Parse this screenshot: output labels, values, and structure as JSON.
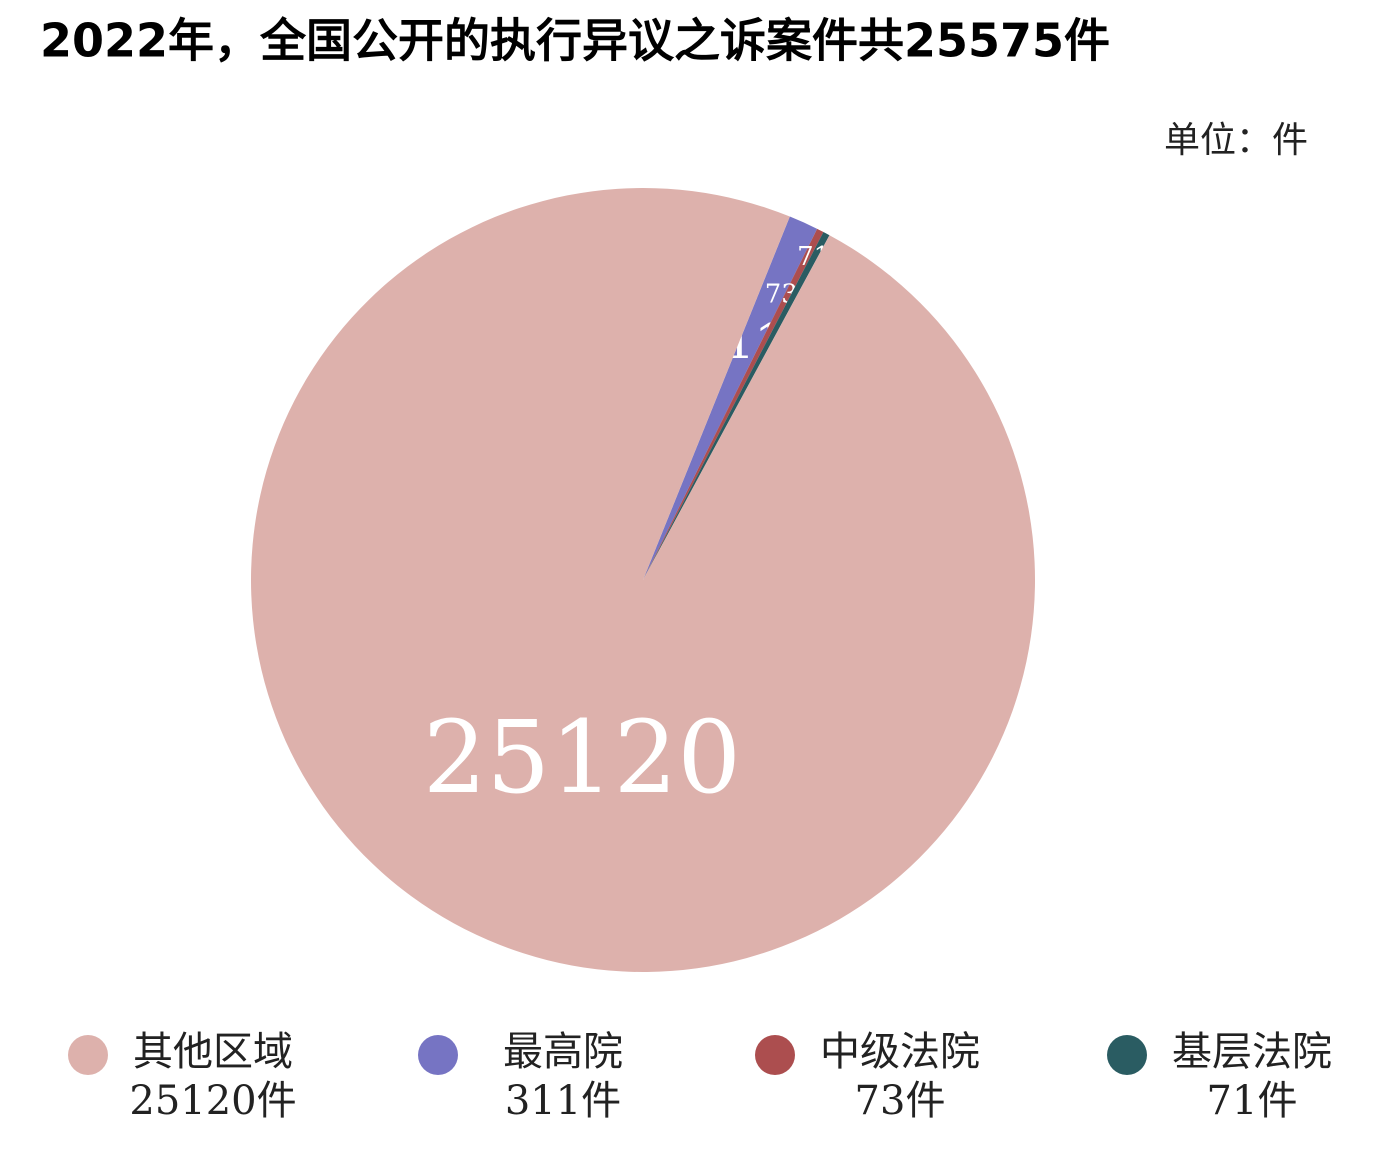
{
  "chart_data": {
    "type": "pie",
    "title": "2022年，全国公开的执行异议之诉案件共25575件",
    "unit_label": "单位：件",
    "categories": [
      "其他区域",
      "最高院",
      "中级法院",
      "基层法院"
    ],
    "values": [
      25120,
      311,
      73,
      71
    ],
    "value_labels": [
      "25120件",
      "311件",
      "73件",
      "71件"
    ],
    "colors": [
      "#ddb1ac",
      "#7674c3",
      "#ac4e4f",
      "#2a5c62"
    ]
  }
}
